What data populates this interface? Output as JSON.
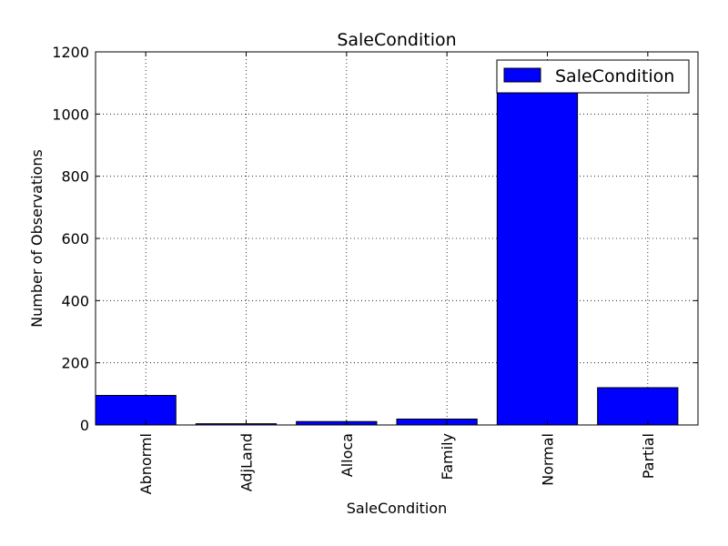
{
  "chart_data": {
    "type": "bar",
    "title": "SaleCondition",
    "xlabel": "SaleCondition",
    "ylabel": "Number of Observations",
    "categories": [
      "Abnorml",
      "AdjLand",
      "Alloca",
      "Family",
      "Normal",
      "Partial"
    ],
    "series": [
      {
        "name": "SaleCondition",
        "values": [
          95,
          4,
          11,
          19,
          1075,
          120
        ]
      }
    ],
    "ylim": [
      0,
      1200
    ],
    "yticks": [
      0,
      200,
      400,
      600,
      800,
      1000,
      1200
    ],
    "grid": true,
    "legend_position": "top-right",
    "bar_color": "#0000ff"
  }
}
